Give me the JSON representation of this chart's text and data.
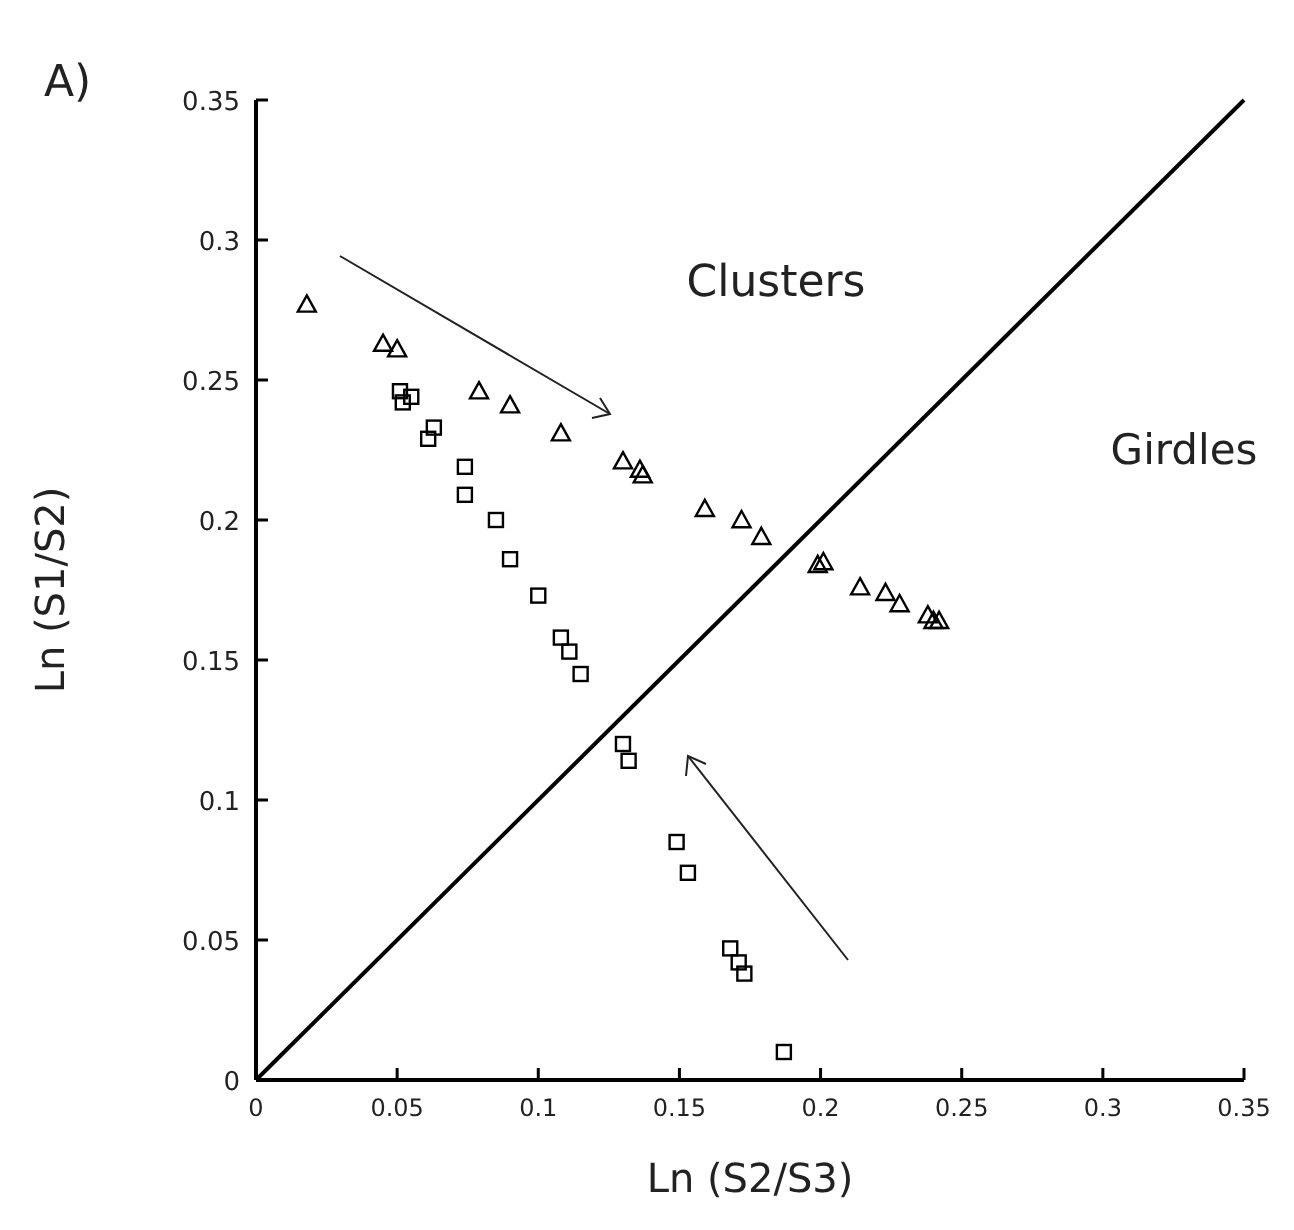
{
  "chart_data": {
    "type": "scatter",
    "xlabel": "Ln (S2/S3)",
    "ylabel": "Ln (S1/S2)",
    "annotations": [
      "A)",
      "Clusters",
      "Girdles"
    ],
    "xlim": [
      0,
      0.35
    ],
    "ylim": [
      0,
      0.35
    ],
    "xticks": [
      0,
      0.05,
      0.1,
      0.15,
      0.2,
      0.25,
      0.3,
      0.35
    ],
    "yticks": [
      0,
      0.05,
      0.1,
      0.15,
      0.2,
      0.25,
      0.3,
      0.35
    ],
    "grid": false,
    "series": [
      {
        "marker": "triangle",
        "color": "#000000",
        "x": [
          0.018,
          0.045,
          0.05,
          0.079,
          0.09,
          0.108,
          0.13,
          0.136,
          0.137,
          0.159,
          0.172,
          0.179,
          0.199,
          0.201,
          0.214,
          0.223,
          0.228,
          0.238,
          0.24,
          0.242
        ],
        "values": [
          0.277,
          0.263,
          0.261,
          0.246,
          0.241,
          0.231,
          0.221,
          0.218,
          0.216,
          0.204,
          0.2,
          0.194,
          0.184,
          0.185,
          0.176,
          0.174,
          0.17,
          0.166,
          0.164,
          0.164
        ]
      },
      {
        "marker": "square",
        "color": "#000000",
        "x": [
          0.051,
          0.052,
          0.055,
          0.063,
          0.061,
          0.074,
          0.074,
          0.085,
          0.09,
          0.1,
          0.108,
          0.111,
          0.115,
          0.13,
          0.132,
          0.149,
          0.153,
          0.168,
          0.171,
          0.173,
          0.187
        ],
        "values": [
          0.246,
          0.242,
          0.244,
          0.233,
          0.229,
          0.219,
          0.209,
          0.2,
          0.186,
          0.173,
          0.158,
          0.153,
          0.145,
          0.12,
          0.114,
          0.085,
          0.074,
          0.047,
          0.042,
          0.038,
          0.01
        ]
      },
      {
        "type": "line",
        "marker": "none",
        "line_style": "solid",
        "color": "#000000",
        "x": [
          0,
          0.35
        ],
        "values": [
          0,
          0.35
        ]
      }
    ]
  }
}
